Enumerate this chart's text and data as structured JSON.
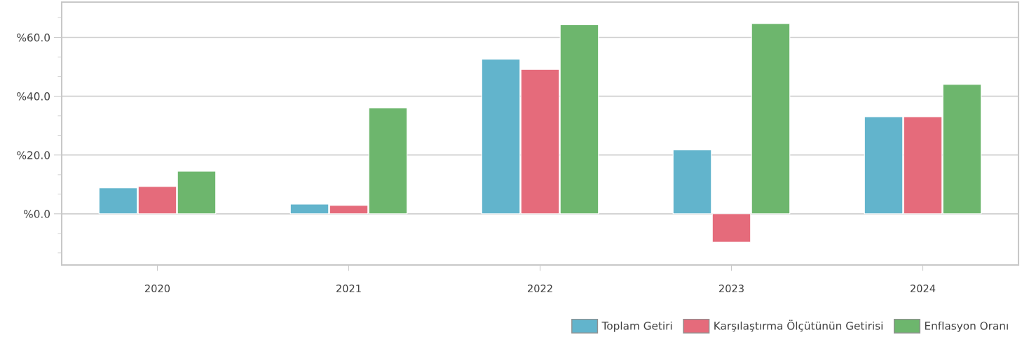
{
  "chart_data": {
    "type": "bar",
    "categories": [
      "2020",
      "2021",
      "2022",
      "2023",
      "2024"
    ],
    "series": [
      {
        "name": "Toplam Getiri",
        "color": "#62b4cc",
        "values": [
          8.8,
          3.3,
          52.6,
          21.7,
          33.0
        ]
      },
      {
        "name": "Karşılaştırma Ölçütünün Getirisi",
        "color": "#e56b7b",
        "values": [
          9.3,
          2.9,
          49.1,
          -9.6,
          33.0
        ]
      },
      {
        "name": "Enflasyon Oranı",
        "color": "#6db66d",
        "values": [
          14.5,
          36.0,
          64.3,
          64.7,
          44.0
        ]
      }
    ],
    "ylim": [
      -17.4,
      72
    ],
    "yticks": [
      {
        "value": -13.3,
        "label": null
      },
      {
        "value": -6.7,
        "label": null
      },
      {
        "value": 0,
        "label": "%0.0"
      },
      {
        "value": 6.7,
        "label": null
      },
      {
        "value": 13.3,
        "label": null
      },
      {
        "value": 20,
        "label": "%20.0"
      },
      {
        "value": 26.7,
        "label": null
      },
      {
        "value": 33.3,
        "label": null
      },
      {
        "value": 40,
        "label": "%40.0"
      },
      {
        "value": 46.7,
        "label": null
      },
      {
        "value": 53.3,
        "label": null
      },
      {
        "value": 60,
        "label": "%60.0"
      },
      {
        "value": 66.7,
        "label": null
      }
    ],
    "grid": "y",
    "legend": "bottom right"
  }
}
